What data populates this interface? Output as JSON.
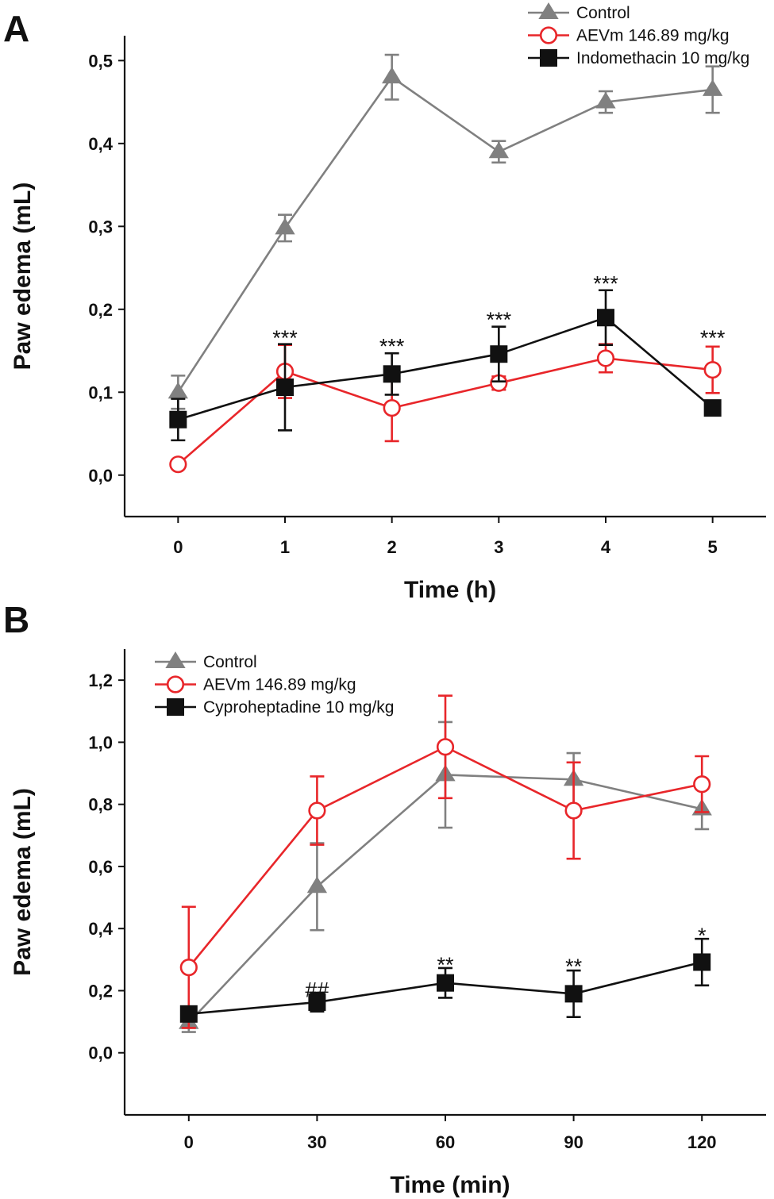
{
  "colors": {
    "control": "#808080",
    "aevm": "#e8262a",
    "drug": "#111111",
    "axis": "#111111"
  },
  "chart_data": [
    {
      "panel": "A",
      "type": "line",
      "xlabel": "Time (h)",
      "ylabel": "Paw edema (mL)",
      "xlim": [
        -0.5,
        5.5
      ],
      "ylim": [
        -0.05,
        0.53
      ],
      "x_ticks": [
        0,
        1,
        2,
        3,
        4,
        5
      ],
      "x_tick_labels": [
        "0",
        "1",
        "2",
        "3",
        "4",
        "5"
      ],
      "y_ticks": [
        0,
        0.1,
        0.2,
        0.3,
        0.4,
        0.5
      ],
      "y_tick_labels": [
        "0,0",
        "0,1",
        "0,2",
        "0,3",
        "0,4",
        "0,5"
      ],
      "legend_position": "top-right",
      "series": [
        {
          "name": "Control",
          "marker": "triangle",
          "color": "#808080",
          "x": [
            0,
            1,
            2,
            3,
            4,
            5
          ],
          "values": [
            0.1,
            0.298,
            0.48,
            0.39,
            0.45,
            0.465
          ],
          "errors": [
            0.02,
            0.016,
            0.027,
            0.013,
            0.013,
            0.028
          ]
        },
        {
          "name": "AEVm 146.89 mg/kg",
          "marker": "circle-open",
          "color": "#e8262a",
          "x": [
            0,
            1,
            2,
            3,
            4,
            5
          ],
          "values": [
            0.013,
            0.125,
            0.081,
            0.111,
            0.141,
            0.127
          ],
          "errors": [
            0,
            0.032,
            0.04,
            0.008,
            0.017,
            0.028
          ]
        },
        {
          "name": "Indomethacin 10 mg/kg",
          "marker": "square",
          "color": "#111111",
          "x": [
            0,
            1,
            2,
            3,
            4,
            5
          ],
          "values": [
            0.067,
            0.106,
            0.122,
            0.146,
            0.19,
            0.081
          ],
          "errors": [
            0.025,
            0.052,
            0.025,
            0.033,
            0.033,
            0.008
          ]
        }
      ],
      "annotations": [
        {
          "x": 1,
          "y": 0.168,
          "text": "***"
        },
        {
          "x": 2,
          "y": 0.158,
          "text": "***"
        },
        {
          "x": 3,
          "y": 0.19,
          "text": "***"
        },
        {
          "x": 4,
          "y": 0.234,
          "text": "***"
        },
        {
          "x": 5,
          "y": 0.168,
          "text": "***"
        }
      ]
    },
    {
      "panel": "B",
      "type": "line",
      "xlabel": "Time (min)",
      "ylabel": "Paw edema (mL)",
      "xlim": [
        -15,
        135
      ],
      "ylim": [
        -0.2,
        1.3
      ],
      "x_ticks": [
        0,
        30,
        60,
        90,
        120
      ],
      "x_tick_labels": [
        "0",
        "30",
        "60",
        "90",
        "120"
      ],
      "y_ticks": [
        0,
        0.2,
        0.4,
        0.6,
        0.8,
        1.0,
        1.2
      ],
      "y_tick_labels": [
        "0,0",
        "0,2",
        "0,4",
        "0,6",
        "0,8",
        "1,0",
        "1,2"
      ],
      "legend_position": "top-left",
      "series": [
        {
          "name": "Control",
          "marker": "triangle",
          "color": "#808080",
          "x": [
            0,
            30,
            60,
            90,
            120
          ],
          "values": [
            0.097,
            0.535,
            0.895,
            0.88,
            0.785
          ],
          "errors": [
            0.03,
            0.14,
            0.17,
            0.085,
            0.065
          ]
        },
        {
          "name": "AEVm 146.89 mg/kg",
          "marker": "circle-open",
          "color": "#e8262a",
          "x": [
            0,
            30,
            60,
            90,
            120
          ],
          "values": [
            0.275,
            0.78,
            0.985,
            0.78,
            0.865
          ],
          "errors": [
            0.195,
            0.11,
            0.165,
            0.155,
            0.09
          ]
        },
        {
          "name": "Cyproheptadine 10 mg/kg",
          "marker": "square",
          "color": "#111111",
          "x": [
            0,
            30,
            60,
            90,
            120
          ],
          "values": [
            0.125,
            0.163,
            0.225,
            0.19,
            0.292
          ],
          "errors": [
            0.015,
            0.03,
            0.048,
            0.075,
            0.075
          ]
        }
      ],
      "annotations": [
        {
          "x": 30,
          "y": 0.21,
          "text": "##"
        },
        {
          "x": 60,
          "y": 0.29,
          "text": "**"
        },
        {
          "x": 90,
          "y": 0.285,
          "text": "**"
        },
        {
          "x": 120,
          "y": 0.385,
          "text": "*"
        }
      ]
    }
  ]
}
